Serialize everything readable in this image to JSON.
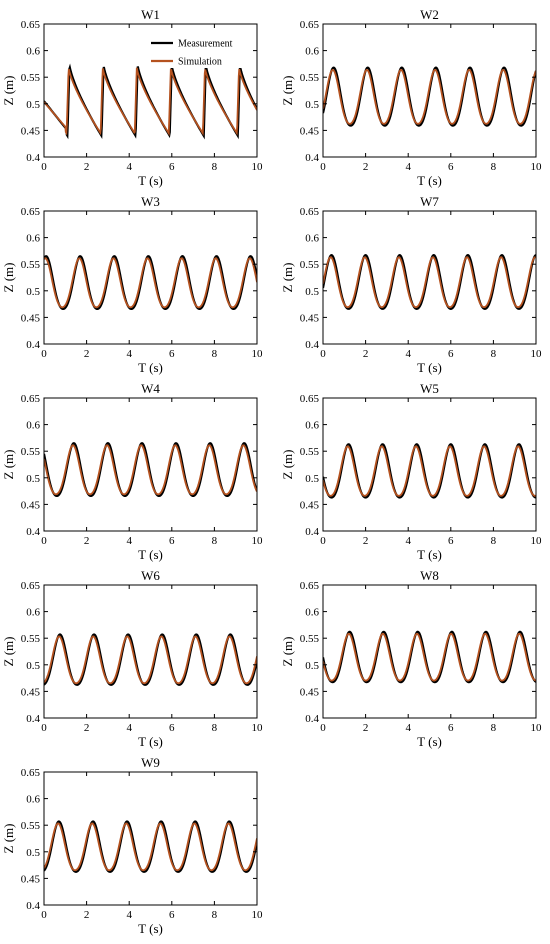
{
  "legend": {
    "position": "top-right",
    "measurement_label": "Measurement",
    "simulation_label": "Simulation"
  },
  "colors": {
    "measurement": "#000000",
    "simulation": "#b5521f"
  },
  "chart_data": [
    {
      "type": "line",
      "title": "W1",
      "xlabel": "T (s)",
      "ylabel": "Z (m)",
      "xlim": [
        0,
        10
      ],
      "ylim": [
        0.4,
        0.65
      ],
      "xticks": [
        "0",
        "2",
        "4",
        "6",
        "8",
        "10"
      ],
      "yticks": [
        "0.4",
        "0.45",
        "0.5",
        "0.55",
        "0.6",
        "0.65"
      ],
      "wave": {
        "period": 1.6,
        "phase": 1.1,
        "min": 0.44,
        "max": 0.573,
        "shape": "sawtooth",
        "start": 0.505
      },
      "series": [
        {
          "name": "Measurement"
        },
        {
          "name": "Simulation"
        }
      ]
    },
    {
      "type": "line",
      "title": "W2",
      "xlabel": "T (s)",
      "ylabel": "Z (m)",
      "xlim": [
        0,
        10
      ],
      "ylim": [
        0.4,
        0.65
      ],
      "xticks": [
        "0",
        "2",
        "4",
        "6",
        "8",
        "10"
      ],
      "yticks": [
        "0.4",
        "0.45",
        "0.5",
        "0.55",
        "0.6",
        "0.65"
      ],
      "wave": {
        "period": 1.6,
        "phase": 0.5,
        "min": 0.447,
        "max": 0.568,
        "shape": "peaked"
      },
      "series": [
        {
          "name": "Measurement"
        },
        {
          "name": "Simulation"
        }
      ]
    },
    {
      "type": "line",
      "title": "W3",
      "xlabel": "T (s)",
      "ylabel": "Z (m)",
      "xlim": [
        0,
        10
      ],
      "ylim": [
        0.4,
        0.65
      ],
      "xticks": [
        "0",
        "2",
        "4",
        "6",
        "8",
        "10"
      ],
      "yticks": [
        "0.4",
        "0.45",
        "0.5",
        "0.55",
        "0.6",
        "0.65"
      ],
      "wave": {
        "period": 1.6,
        "phase": 0.1,
        "min": 0.455,
        "max": 0.565,
        "shape": "peaked"
      },
      "series": [
        {
          "name": "Measurement"
        },
        {
          "name": "Simulation"
        }
      ]
    },
    {
      "type": "line",
      "title": "W7",
      "xlabel": "T (s)",
      "ylabel": "Z (m)",
      "xlim": [
        0,
        10
      ],
      "ylim": [
        0.4,
        0.65
      ],
      "xticks": [
        "0",
        "2",
        "4",
        "6",
        "8",
        "10"
      ],
      "yticks": [
        "0.4",
        "0.45",
        "0.5",
        "0.55",
        "0.6",
        "0.65"
      ],
      "wave": {
        "period": 1.6,
        "phase": 0.4,
        "min": 0.455,
        "max": 0.567,
        "shape": "peaked"
      },
      "series": [
        {
          "name": "Measurement"
        },
        {
          "name": "Simulation"
        }
      ]
    },
    {
      "type": "line",
      "title": "W4",
      "xlabel": "T (s)",
      "ylabel": "Z (m)",
      "xlim": [
        0,
        10
      ],
      "ylim": [
        0.4,
        0.65
      ],
      "xticks": [
        "0",
        "2",
        "4",
        "6",
        "8",
        "10"
      ],
      "yticks": [
        "0.4",
        "0.45",
        "0.5",
        "0.55",
        "0.6",
        "0.65"
      ],
      "wave": {
        "period": 1.6,
        "phase": 1.4,
        "min": 0.455,
        "max": 0.565,
        "shape": "peaked"
      },
      "series": [
        {
          "name": "Measurement"
        },
        {
          "name": "Simulation"
        }
      ]
    },
    {
      "type": "line",
      "title": "W5",
      "xlabel": "T (s)",
      "ylabel": "Z (m)",
      "xlim": [
        0,
        10
      ],
      "ylim": [
        0.4,
        0.65
      ],
      "xticks": [
        "0",
        "2",
        "4",
        "6",
        "8",
        "10"
      ],
      "yticks": [
        "0.4",
        "0.45",
        "0.5",
        "0.55",
        "0.6",
        "0.65"
      ],
      "wave": {
        "period": 1.6,
        "phase": 1.2,
        "min": 0.452,
        "max": 0.563,
        "shape": "peaked"
      },
      "series": [
        {
          "name": "Measurement"
        },
        {
          "name": "Simulation"
        }
      ]
    },
    {
      "type": "line",
      "title": "W6",
      "xlabel": "T (s)",
      "ylabel": "Z (m)",
      "xlim": [
        0,
        10
      ],
      "ylim": [
        0.4,
        0.65
      ],
      "xticks": [
        "0",
        "2",
        "4",
        "6",
        "8",
        "10"
      ],
      "yticks": [
        "0.4",
        "0.45",
        "0.5",
        "0.55",
        "0.6",
        "0.65"
      ],
      "wave": {
        "period": 1.6,
        "phase": 0.75,
        "min": 0.452,
        "max": 0.557,
        "shape": "peaked"
      },
      "series": [
        {
          "name": "Measurement"
        },
        {
          "name": "Simulation"
        }
      ]
    },
    {
      "type": "line",
      "title": "W8",
      "xlabel": "T (s)",
      "ylabel": "Z (m)",
      "xlim": [
        0,
        10
      ],
      "ylim": [
        0.4,
        0.65
      ],
      "xticks": [
        "0",
        "2",
        "4",
        "6",
        "8",
        "10"
      ],
      "yticks": [
        "0.4",
        "0.45",
        "0.5",
        "0.55",
        "0.6",
        "0.65"
      ],
      "wave": {
        "period": 1.6,
        "phase": 1.25,
        "min": 0.457,
        "max": 0.562,
        "shape": "peaked"
      },
      "series": [
        {
          "name": "Measurement"
        },
        {
          "name": "Simulation"
        }
      ]
    },
    {
      "type": "line",
      "title": "W9",
      "xlabel": "T (s)",
      "ylabel": "Z (m)",
      "xlim": [
        0,
        10
      ],
      "ylim": [
        0.4,
        0.65
      ],
      "xticks": [
        "0",
        "2",
        "4",
        "6",
        "8",
        "10"
      ],
      "yticks": [
        "0.4",
        "0.45",
        "0.5",
        "0.55",
        "0.6",
        "0.65"
      ],
      "wave": {
        "period": 1.6,
        "phase": 0.7,
        "min": 0.452,
        "max": 0.557,
        "shape": "peaked"
      },
      "series": [
        {
          "name": "Measurement"
        },
        {
          "name": "Simulation"
        }
      ]
    }
  ]
}
